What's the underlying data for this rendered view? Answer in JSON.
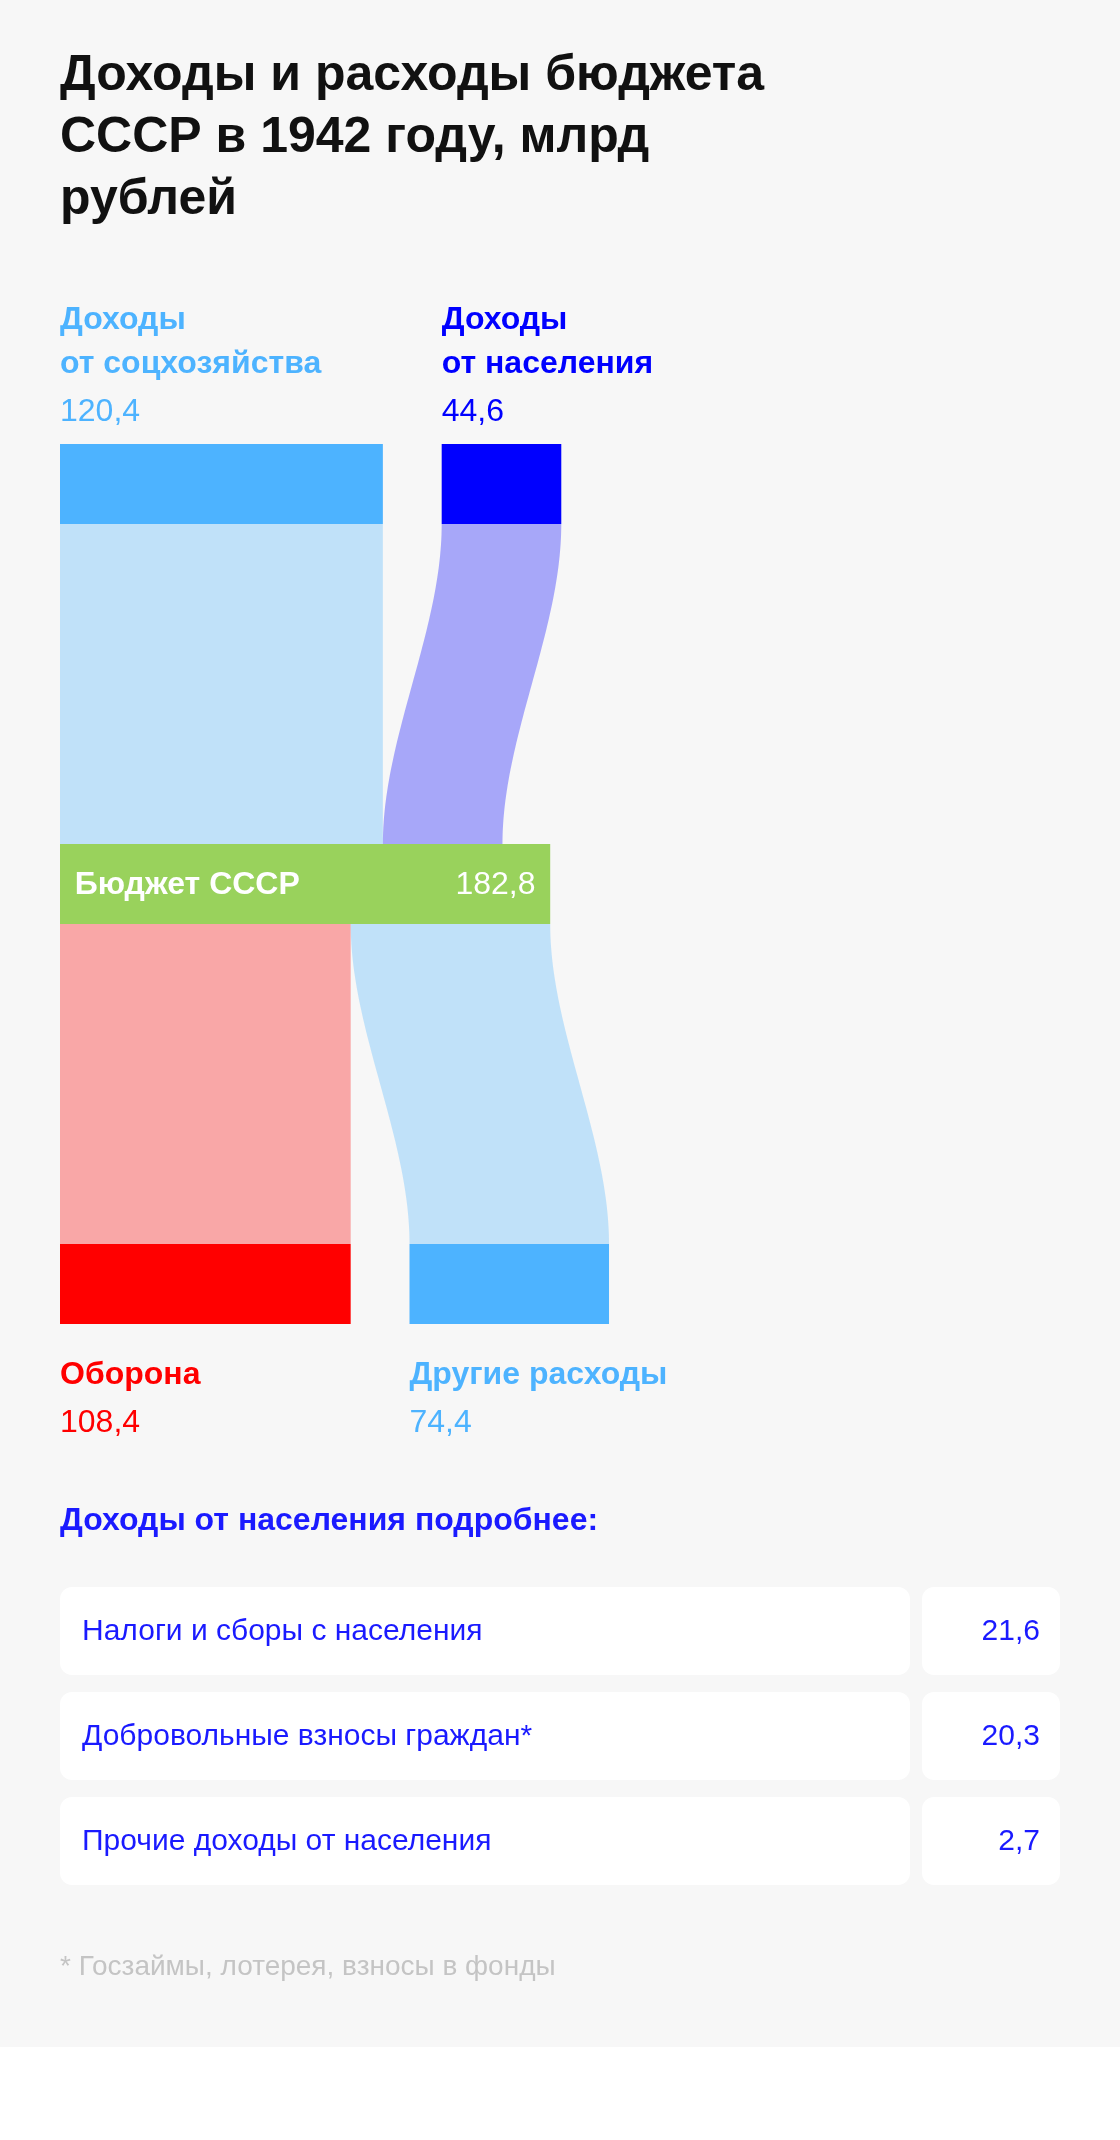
{
  "chart_data": [
    {
      "type": "other",
      "title": "Доходы и расходы бюджета СССР в 1942 году, млрд рублей",
      "categories": [
        "Доходы от соцхозяйства",
        "Доходы от населения",
        "Бюджет СССР",
        "Оборона",
        "Другие расходы"
      ],
      "values": [
        120.4,
        44.6,
        182.8,
        108.4,
        74.4
      ],
      "colors": [
        "#4db3ff",
        "#0000ff",
        "#99d25c",
        "#ff0000",
        "#4db3ff"
      ],
      "value_labels": [
        "120,4",
        "44,6",
        "182,8",
        "108,4",
        "74,4"
      ]
    },
    {
      "type": "other",
      "title": "Доходы от населения подробнее:",
      "categories": [
        "Налоги и сборы с населения",
        "Добровольные взносы граждан*",
        "Прочие доходы от населения"
      ],
      "values": [
        21.6,
        20.3,
        2.7
      ],
      "value_labels": [
        "21,6",
        "20,3",
        "2,7"
      ],
      "annotations": [
        "* Госзаймы, лотерея, взносы в фонды"
      ]
    }
  ]
}
